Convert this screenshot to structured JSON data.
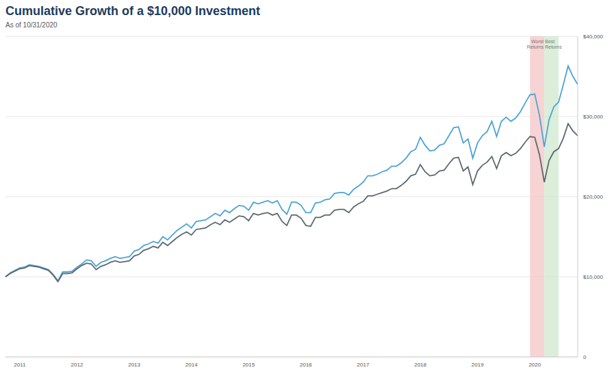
{
  "chart_data": {
    "type": "line",
    "title": "Cumulative Growth of a $10,000 Investment",
    "subtitle": "As of 10/31/2020",
    "categories": [
      null,
      null,
      null,
      "2011",
      null,
      null,
      null,
      null,
      null,
      null,
      null,
      null,
      null,
      null,
      null,
      "2012",
      null,
      null,
      null,
      null,
      null,
      null,
      null,
      null,
      null,
      null,
      null,
      "2013",
      null,
      null,
      null,
      null,
      null,
      null,
      null,
      null,
      null,
      null,
      null,
      "2014",
      null,
      null,
      null,
      null,
      null,
      null,
      null,
      null,
      null,
      null,
      null,
      "2015",
      null,
      null,
      null,
      null,
      null,
      null,
      null,
      null,
      null,
      null,
      null,
      "2016",
      null,
      null,
      null,
      null,
      null,
      null,
      null,
      null,
      null,
      null,
      null,
      "2017",
      null,
      null,
      null,
      null,
      null,
      null,
      null,
      null,
      null,
      null,
      null,
      "2018",
      null,
      null,
      null,
      null,
      null,
      null,
      null,
      null,
      null,
      null,
      null,
      "2019",
      null,
      null,
      null,
      null,
      null,
      null,
      null,
      null,
      null,
      null,
      null,
      "2020",
      null,
      null,
      null,
      null,
      null,
      null,
      null,
      null,
      null
    ],
    "series": [
      {
        "color": "#4aa3d6",
        "values": [
          10000,
          10500,
          10800,
          11100,
          11200,
          11500,
          11400,
          11300,
          11100,
          10900,
          10300,
          9500,
          10600,
          10600,
          10700,
          11200,
          11600,
          12100,
          12000,
          11300,
          11800,
          12000,
          12300,
          12500,
          12300,
          12400,
          12500,
          13200,
          13400,
          13900,
          14100,
          14400,
          14200,
          15000,
          14600,
          15200,
          15800,
          16200,
          16600,
          16100,
          16900,
          17000,
          17100,
          17500,
          17900,
          17600,
          18300,
          18000,
          18500,
          18900,
          18800,
          18300,
          19300,
          19100,
          19300,
          19500,
          19200,
          19500,
          18400,
          17800,
          19300,
          19300,
          18900,
          18000,
          18000,
          19200,
          19300,
          19600,
          19700,
          20400,
          20500,
          20500,
          20200,
          20900,
          21300,
          21800,
          22600,
          22600,
          22800,
          23100,
          23300,
          23800,
          23800,
          24200,
          24800,
          25600,
          25900,
          27400,
          26400,
          25700,
          25800,
          26400,
          26600,
          27600,
          28600,
          28700,
          26700,
          27200,
          24800,
          26700,
          27600,
          28100,
          29400,
          27500,
          29400,
          29900,
          29400,
          29800,
          30600,
          31700,
          32700,
          32800,
          30100,
          26200,
          29600,
          31200,
          31800,
          34000,
          36300,
          35000,
          34000
        ]
      },
      {
        "color": "#5b6770",
        "values": [
          10000,
          10400,
          10700,
          11000,
          11100,
          11400,
          11300,
          11200,
          11000,
          10800,
          10200,
          9400,
          10400,
          10400,
          10500,
          11000,
          11400,
          11700,
          11600,
          10900,
          11300,
          11500,
          11800,
          12000,
          11800,
          11900,
          12000,
          12600,
          12800,
          13300,
          13500,
          13800,
          13600,
          14300,
          13900,
          14400,
          14900,
          15300,
          15600,
          15200,
          15900,
          16000,
          16100,
          16500,
          16800,
          16500,
          17100,
          16800,
          17200,
          17600,
          17500,
          17000,
          17900,
          17700,
          17900,
          18000,
          17700,
          17900,
          16900,
          16400,
          17700,
          17700,
          17300,
          16400,
          16300,
          17400,
          17400,
          17700,
          17700,
          18300,
          18400,
          18400,
          18000,
          18700,
          19100,
          19400,
          20100,
          20100,
          20300,
          20500,
          20700,
          21000,
          21000,
          21400,
          21900,
          22600,
          22800,
          24000,
          23100,
          22600,
          22700,
          23200,
          23300,
          24100,
          24800,
          24900,
          23200,
          23700,
          21500,
          23200,
          23900,
          24300,
          25000,
          23500,
          25100,
          25500,
          25100,
          25400,
          26000,
          26800,
          27500,
          27400,
          25200,
          21800,
          24500,
          25600,
          26000,
          27300,
          29100,
          28200,
          27600
        ]
      }
    ],
    "annotations": [
      {
        "text": "Worst Returns",
        "from": 110,
        "to": 113
      },
      {
        "text": "Best Returns",
        "from": 113,
        "to": 116
      }
    ],
    "ylim": [
      0,
      40000
    ],
    "yticks": [
      0,
      {
        "value": 10000,
        "label": "$10,000"
      },
      {
        "value": 20000,
        "label": "$20,000"
      },
      {
        "value": 30000,
        "label": "$30,000"
      },
      {
        "value": 40000,
        "label": "$40,000"
      }
    ],
    "grid": true
  }
}
